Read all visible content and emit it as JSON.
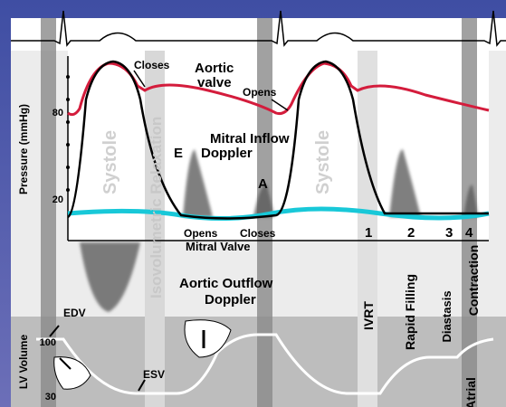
{
  "header": {
    "pressure_axis": "Pressure (mmHg)",
    "pressure_ticks": [
      "80",
      "20"
    ],
    "volume_axis": "LV Volume",
    "volume_ticks": [
      "100",
      "30"
    ]
  },
  "annotations": {
    "aortic_closes": "Closes",
    "aortic_valve": [
      "Aortic",
      "valve"
    ],
    "aortic_opens": "Opens",
    "systole": [
      "Systole",
      "Systole"
    ],
    "isovolumetric": "Isovolumetric Relaxation",
    "mitral_inflow": [
      "Mitral Inflow",
      "Doppler"
    ],
    "e_wave": "E",
    "a_wave": "A",
    "mitral_opens": "Opens",
    "mitral_closes": "Closes",
    "mitral_valve": "Mitral Valve",
    "phases": [
      "1",
      "2",
      "3",
      "4"
    ],
    "aortic_outflow": [
      "Aortic Outflow",
      "Doppler"
    ],
    "ivrt": "IVRT",
    "rapid_filling": "Rapid Filling",
    "diastasis": "Diastasis",
    "atrial": "Atrial",
    "contraction": "Contraction",
    "edv": "EDV",
    "esv": "ESV"
  }
}
